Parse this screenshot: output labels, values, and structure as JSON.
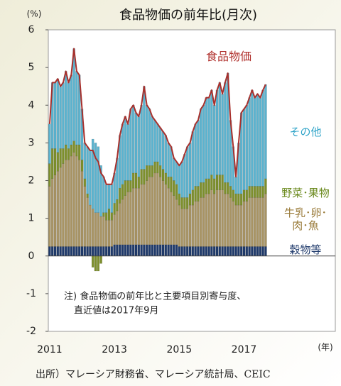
{
  "chart_data": {
    "type": "bar",
    "title": "食品物価の前年比(月次)",
    "y_unit": "(%)",
    "x_unit": "(年)",
    "note": [
      "注) 食品物価の前年比と主要項目別寄与度、",
      "直近値は2017年9月"
    ],
    "source": "出所）マレーシア財務省、マレーシア統計局、CEIC",
    "stacked": true,
    "ylim": [
      -2,
      6
    ],
    "yticks": [
      -2,
      -1,
      0,
      1,
      2,
      3,
      4,
      5,
      6
    ],
    "categories": [
      "2011",
      null,
      null,
      null,
      null,
      null,
      null,
      null,
      null,
      null,
      null,
      null,
      null,
      null,
      null,
      null,
      null,
      null,
      null,
      null,
      null,
      null,
      null,
      null,
      "2013",
      null,
      null,
      null,
      null,
      null,
      null,
      null,
      null,
      null,
      null,
      null,
      null,
      null,
      null,
      null,
      null,
      null,
      null,
      null,
      null,
      null,
      null,
      null,
      "2015",
      null,
      null,
      null,
      null,
      null,
      null,
      null,
      null,
      null,
      null,
      null,
      null,
      null,
      null,
      null,
      null,
      null,
      null,
      null,
      null,
      null,
      null,
      null,
      "2017",
      null,
      null,
      null,
      null,
      null,
      null,
      null,
      null
    ],
    "series": [
      {
        "name": "穀物等",
        "color": "#1f3a6b",
        "label_color": "#1f3a6b",
        "values": [
          0.25,
          0.25,
          0.25,
          0.25,
          0.25,
          0.25,
          0.25,
          0.25,
          0.25,
          0.25,
          0.25,
          0.25,
          0.25,
          0.25,
          0.25,
          0.25,
          0.25,
          0.25,
          0.25,
          0.25,
          0.25,
          0.25,
          0.25,
          0.25,
          0.3,
          0.3,
          0.3,
          0.3,
          0.3,
          0.3,
          0.3,
          0.3,
          0.3,
          0.3,
          0.3,
          0.3,
          0.3,
          0.3,
          0.3,
          0.3,
          0.3,
          0.3,
          0.3,
          0.3,
          0.3,
          0.3,
          0.3,
          0.3,
          0.25,
          0.25,
          0.25,
          0.25,
          0.25,
          0.25,
          0.25,
          0.25,
          0.25,
          0.25,
          0.25,
          0.25,
          0.25,
          0.25,
          0.25,
          0.25,
          0.25,
          0.25,
          0.25,
          0.25,
          0.25,
          0.25,
          0.25,
          0.25,
          0.25,
          0.25,
          0.25,
          0.25,
          0.25,
          0.25,
          0.25,
          0.25,
          0.25
        ]
      },
      {
        "name": "牛乳･卵･肉･魚",
        "color": "#a89464",
        "label_color": "#9a7b3a",
        "values": [
          1.6,
          1.8,
          1.9,
          2.0,
          2.1,
          2.2,
          2.3,
          2.3,
          2.4,
          2.5,
          2.4,
          2.3,
          2.0,
          1.6,
          1.3,
          1.1,
          1.0,
          0.9,
          0.9,
          0.8,
          0.8,
          0.7,
          0.7,
          0.7,
          0.8,
          0.9,
          1.1,
          1.2,
          1.3,
          1.4,
          1.4,
          1.5,
          1.5,
          1.5,
          1.6,
          1.6,
          1.7,
          1.8,
          1.8,
          1.9,
          1.9,
          1.8,
          1.7,
          1.6,
          1.5,
          1.4,
          1.3,
          1.2,
          1.1,
          1.0,
          1.0,
          1.0,
          1.1,
          1.1,
          1.2,
          1.2,
          1.3,
          1.3,
          1.4,
          1.4,
          1.5,
          1.4,
          1.5,
          1.5,
          1.5,
          1.4,
          1.4,
          1.3,
          1.2,
          1.1,
          1.1,
          1.1,
          1.2,
          1.2,
          1.3,
          1.3,
          1.3,
          1.3,
          1.3,
          1.3,
          1.4
        ]
      },
      {
        "name": "野菜･果物",
        "color": "#7d8f2c",
        "label_color": "#6b8a1e",
        "values": [
          0.6,
          0.8,
          0.7,
          0.5,
          0.5,
          0.4,
          0.4,
          0.3,
          0.3,
          0.3,
          0.3,
          0.4,
          0.3,
          0.2,
          0.1,
          0.0,
          -0.3,
          -0.4,
          -0.4,
          -0.2,
          0.1,
          0.2,
          0.3,
          0.2,
          0.3,
          0.3,
          0.4,
          0.4,
          0.4,
          0.3,
          0.3,
          0.4,
          0.4,
          0.3,
          0.4,
          0.4,
          0.4,
          0.3,
          0.3,
          0.3,
          0.3,
          0.3,
          0.3,
          0.3,
          0.3,
          0.4,
          0.4,
          0.4,
          0.3,
          0.3,
          0.3,
          0.3,
          0.3,
          0.4,
          0.4,
          0.4,
          0.4,
          0.4,
          0.4,
          0.4,
          0.4,
          0.4,
          0.4,
          0.4,
          0.4,
          0.3,
          0.3,
          0.3,
          0.3,
          0.3,
          0.3,
          0.3,
          0.3,
          0.3,
          0.3,
          0.3,
          0.3,
          0.3,
          0.3,
          0.3,
          0.4
        ]
      },
      {
        "name": "その他",
        "color": "#5bb3cf",
        "label_color": "#2ea3c8",
        "values": [
          1.05,
          1.75,
          1.75,
          1.95,
          1.65,
          1.75,
          1.95,
          1.75,
          1.85,
          2.45,
          1.95,
          1.85,
          1.35,
          0.95,
          1.25,
          1.45,
          1.85,
          1.85,
          1.75,
          1.35,
          0.95,
          0.75,
          0.65,
          0.75,
          0.8,
          1.1,
          1.4,
          1.6,
          1.7,
          1.5,
          1.9,
          1.8,
          1.6,
          1.6,
          1.7,
          2.2,
          1.6,
          1.5,
          1.3,
          1.1,
          1.0,
          1.0,
          1.0,
          1.0,
          0.9,
          0.8,
          0.6,
          0.6,
          0.75,
          0.95,
          1.15,
          1.35,
          1.35,
          1.55,
          1.65,
          1.75,
          1.95,
          2.05,
          2.15,
          2.15,
          2.25,
          1.95,
          2.25,
          2.45,
          2.15,
          2.65,
          2.9,
          1.75,
          1.15,
          0.45,
          1.35,
          2.15,
          2.15,
          2.25,
          2.35,
          2.55,
          2.35,
          2.45,
          2.35,
          2.55,
          2.5
        ]
      },
      {
        "name": "食品物価",
        "type": "line",
        "color": "#a8302c",
        "label_color": "#b0302c",
        "values": [
          3.5,
          4.6,
          4.6,
          4.7,
          4.5,
          4.6,
          4.9,
          4.6,
          4.8,
          5.5,
          4.9,
          4.8,
          3.9,
          3.0,
          2.9,
          2.8,
          2.8,
          2.6,
          2.5,
          2.2,
          2.1,
          1.9,
          1.9,
          1.9,
          2.2,
          2.6,
          3.2,
          3.5,
          3.7,
          3.5,
          3.9,
          4.0,
          3.8,
          3.7,
          4.0,
          4.5,
          4.0,
          3.9,
          3.7,
          3.6,
          3.5,
          3.4,
          3.3,
          3.2,
          3.0,
          2.9,
          2.6,
          2.5,
          2.4,
          2.5,
          2.7,
          2.9,
          3.0,
          3.3,
          3.5,
          3.6,
          3.9,
          4.0,
          4.2,
          4.2,
          4.4,
          4.0,
          4.4,
          4.6,
          4.3,
          4.6,
          4.85,
          3.6,
          2.9,
          2.1,
          3.0,
          3.8,
          3.9,
          4.0,
          4.2,
          4.4,
          4.2,
          4.3,
          4.2,
          4.4,
          4.55
        ]
      }
    ]
  }
}
